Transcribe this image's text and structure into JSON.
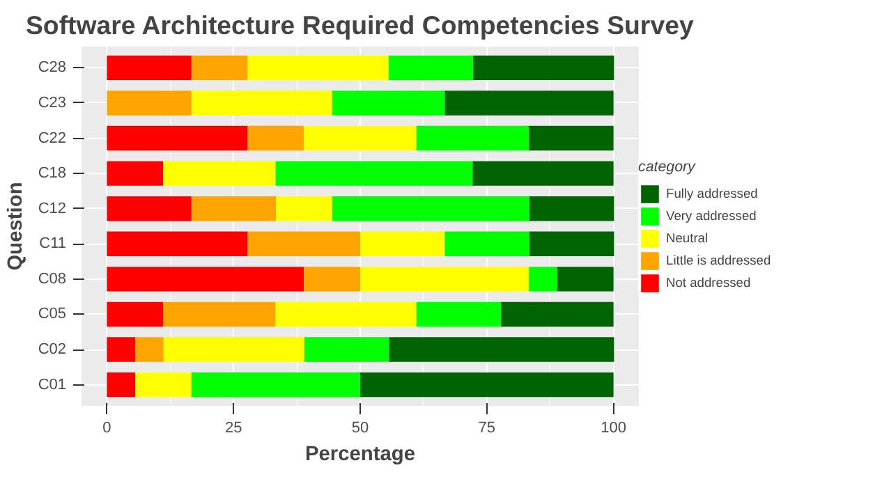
{
  "chart_data": {
    "type": "bar",
    "orientation": "horizontal",
    "stacked": true,
    "title": "Software Architecture Required Competencies Survey",
    "xlabel": "Percentage",
    "ylabel": "Question",
    "legend_title": "category",
    "categories": [
      "C28",
      "C23",
      "C22",
      "C18",
      "C12",
      "C11",
      "C08",
      "C05",
      "C02",
      "C01"
    ],
    "series": [
      {
        "name": "Not addressed",
        "color": "#ff0000",
        "values": [
          16.7,
          0,
          27.8,
          11.1,
          16.7,
          27.8,
          38.9,
          11.1,
          5.6,
          5.6
        ]
      },
      {
        "name": "Little is addressed",
        "color": "#ffa500",
        "values": [
          11.1,
          16.7,
          11.1,
          0,
          16.7,
          22.2,
          11.1,
          22.2,
          5.6,
          0
        ]
      },
      {
        "name": "Neutral",
        "color": "#ffff00",
        "values": [
          27.8,
          27.8,
          22.2,
          22.2,
          11.1,
          16.7,
          33.3,
          27.8,
          27.8,
          11.1
        ]
      },
      {
        "name": "Very addressed",
        "color": "#00ff00",
        "values": [
          16.7,
          22.2,
          22.2,
          38.9,
          38.9,
          16.7,
          5.6,
          16.7,
          16.7,
          33.3
        ]
      },
      {
        "name": "Fully addressed",
        "color": "#006400",
        "values": [
          27.8,
          33.3,
          16.7,
          27.8,
          16.7,
          16.7,
          11.1,
          22.2,
          44.4,
          50
        ]
      }
    ],
    "xlim": [
      -5,
      105
    ],
    "xticks": [
      0,
      25,
      50,
      75,
      100
    ],
    "grid": true,
    "legend": "right"
  }
}
